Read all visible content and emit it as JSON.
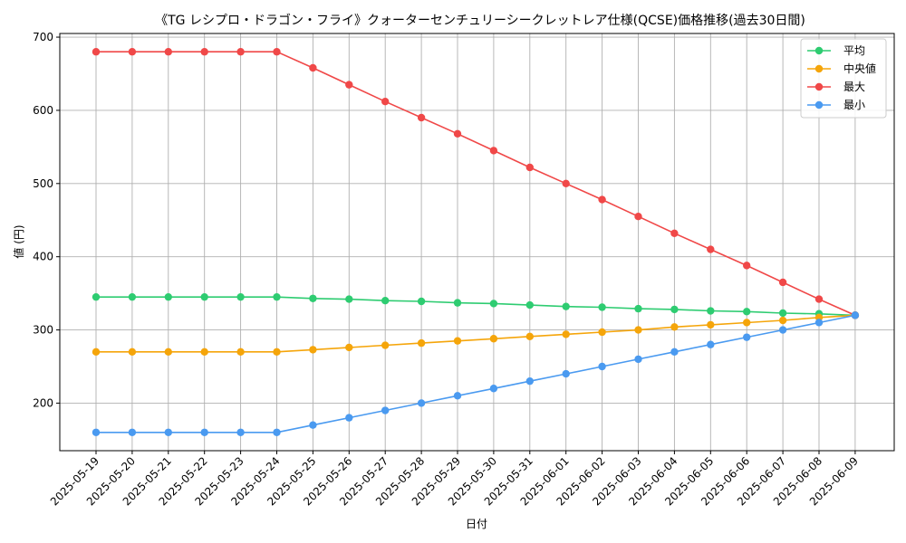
{
  "chart_data": {
    "type": "line",
    "title": "《TG レシプロ・ドラゴン・フライ》クォーターセンチュリーシークレットレア仕様(QCSE)価格推移(過去30日間)",
    "xlabel": "日付",
    "ylabel": "値 (円)",
    "ylim": [
      135,
      705
    ],
    "yticks": [
      200,
      300,
      400,
      500,
      600,
      700
    ],
    "grid": true,
    "legend_position": "top-right",
    "categories": [
      "2025-05-19",
      "2025-05-20",
      "2025-05-21",
      "2025-05-22",
      "2025-05-23",
      "2025-05-24",
      "2025-05-25",
      "2025-05-26",
      "2025-05-27",
      "2025-05-28",
      "2025-05-29",
      "2025-05-30",
      "2025-05-31",
      "2025-06-01",
      "2025-06-02",
      "2025-06-03",
      "2025-06-04",
      "2025-06-05",
      "2025-06-06",
      "2025-06-07",
      "2025-06-08",
      "2025-06-09"
    ],
    "series": [
      {
        "name": "平均",
        "color": "#2ecc71",
        "values": [
          345,
          345,
          345,
          345,
          345,
          345,
          343,
          342,
          340,
          339,
          337,
          336,
          334,
          332,
          331,
          329,
          328,
          326,
          325,
          323,
          322,
          320
        ]
      },
      {
        "name": "中央値",
        "color": "#f5a50a",
        "values": [
          270,
          270,
          270,
          270,
          270,
          270,
          273,
          276,
          279,
          282,
          285,
          288,
          291,
          294,
          297,
          300,
          304,
          307,
          310,
          313,
          317,
          320
        ]
      },
      {
        "name": "最大",
        "color": "#f04848",
        "values": [
          680,
          680,
          680,
          680,
          680,
          680,
          658,
          635,
          612,
          590,
          568,
          545,
          522,
          500,
          478,
          455,
          432,
          410,
          388,
          365,
          342,
          320
        ]
      },
      {
        "name": "最小",
        "color": "#4a9af0",
        "values": [
          160,
          160,
          160,
          160,
          160,
          160,
          170,
          180,
          190,
          200,
          210,
          220,
          230,
          240,
          250,
          260,
          270,
          280,
          290,
          300,
          310,
          320
        ]
      }
    ]
  }
}
